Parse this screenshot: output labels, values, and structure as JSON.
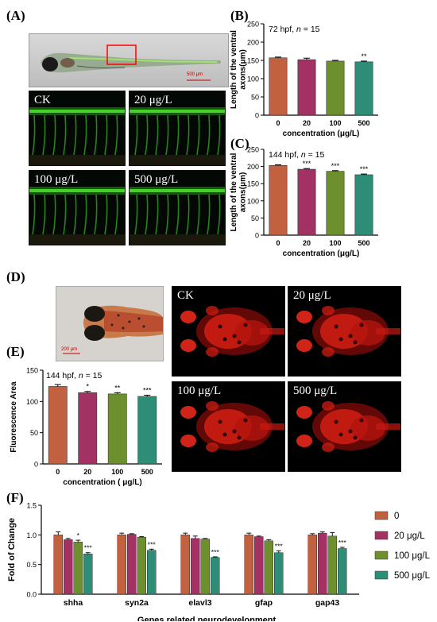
{
  "panels": {
    "a_label": "(A)",
    "b_label": "(B)",
    "c_label": "(C)",
    "d_label": "(D)",
    "e_label": "(E)",
    "f_label": "(F)"
  },
  "scale_bars": {
    "larva": "500 μm",
    "head": "200 μm"
  },
  "micrographs_a": [
    "CK",
    "20 μg/L",
    "100 μg/L",
    "500 μg/L"
  ],
  "micrographs_d": [
    "CK",
    "20 μg/L",
    "100 μg/L",
    "500 μg/L"
  ],
  "colors": {
    "c0": "#c2613f",
    "c20": "#a33264",
    "c100": "#6e8f2e",
    "c500": "#2e8d76"
  },
  "chart_data": [
    {
      "id": "B",
      "type": "bar",
      "title": "72 hpf, n = 15",
      "xlabel": "concentration (μg/L)",
      "ylabel": "Length of the ventral axons(μm)",
      "categories": [
        "0",
        "20",
        "100",
        "500"
      ],
      "values": [
        157,
        152,
        148,
        146
      ],
      "errors": [
        2,
        4,
        2,
        2
      ],
      "significance": [
        "",
        "",
        "",
        "**"
      ],
      "ylim": [
        0,
        250
      ],
      "yticks": [
        0,
        50,
        100,
        150,
        200,
        250
      ]
    },
    {
      "id": "C",
      "type": "bar",
      "title": "144 hpf, n = 15",
      "xlabel": "concentration (μg/L)",
      "ylabel": "Length of the ventral axons(μm)",
      "categories": [
        "0",
        "20",
        "100",
        "500"
      ],
      "values": [
        203,
        192,
        186,
        176
      ],
      "errors": [
        2,
        2,
        2,
        2
      ],
      "significance": [
        "",
        "***",
        "***",
        "***"
      ],
      "ylim": [
        0,
        250
      ],
      "yticks": [
        0,
        50,
        100,
        150,
        200,
        250
      ]
    },
    {
      "id": "E",
      "type": "bar",
      "title": "144 hpf, n = 15",
      "xlabel": "concentration ( μg/L)",
      "ylabel": "Fluorescence Area",
      "categories": [
        "0",
        "20",
        "100",
        "500"
      ],
      "values": [
        124,
        114,
        112,
        108
      ],
      "errors": [
        3,
        2,
        2,
        2
      ],
      "significance": [
        "",
        "*",
        "**",
        "***"
      ],
      "ylim": [
        0,
        150
      ],
      "yticks": [
        0,
        50,
        100,
        150
      ]
    },
    {
      "id": "F",
      "type": "bar",
      "xlabel": "Genes related neurodevelopment",
      "ylabel": "Fold of Change",
      "categories": [
        "shha",
        "syn2a",
        "elavl3",
        "gfap",
        "gap43"
      ],
      "series": [
        {
          "name": "0",
          "values": [
            1.0,
            1.0,
            1.0,
            1.0,
            1.0
          ],
          "errors": [
            0.05,
            0.03,
            0.03,
            0.03,
            0.02
          ],
          "significance": [
            "",
            "",
            "",
            "",
            ""
          ]
        },
        {
          "name": "20 μg/L",
          "values": [
            0.92,
            1.01,
            0.94,
            0.97,
            1.03
          ],
          "errors": [
            0.02,
            0.01,
            0.04,
            0.01,
            0.02
          ],
          "significance": [
            "",
            "",
            "",
            "",
            ""
          ]
        },
        {
          "name": "100 μg/L",
          "values": [
            0.88,
            0.96,
            0.93,
            0.9,
            0.98
          ],
          "errors": [
            0.03,
            0.01,
            0.01,
            0.02,
            0.06
          ],
          "significance": [
            "*",
            "",
            "",
            "",
            ""
          ]
        },
        {
          "name": "500 μg/L",
          "values": [
            0.68,
            0.74,
            0.62,
            0.7,
            0.77
          ],
          "errors": [
            0.02,
            0.02,
            0.01,
            0.03,
            0.02
          ],
          "significance": [
            "***",
            "***",
            "***",
            "***",
            "***"
          ]
        }
      ],
      "ylim": [
        0,
        1.5
      ],
      "yticks": [
        0.0,
        0.5,
        1.0,
        1.5
      ],
      "legend_position": "right"
    }
  ]
}
